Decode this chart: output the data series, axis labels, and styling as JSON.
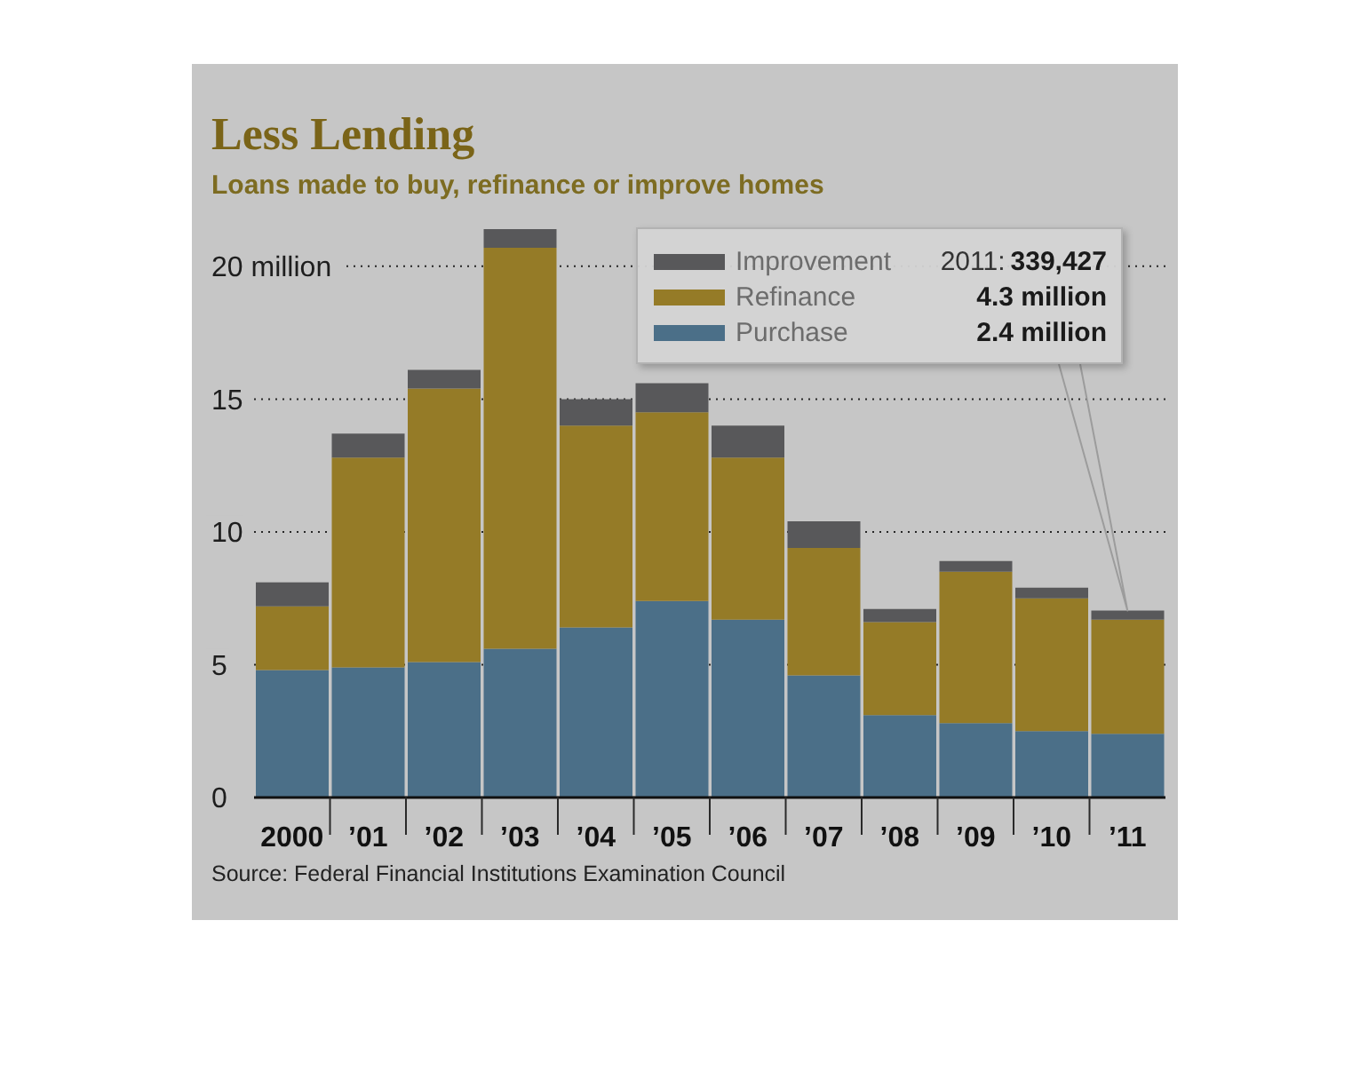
{
  "chart_data": {
    "type": "bar",
    "title": "Less Lending",
    "subtitle": "Loans made to buy, refinance or improve homes",
    "categories": [
      "2000",
      "’01",
      "’02",
      "’03",
      "’04",
      "’05",
      "’06",
      "’07",
      "’08",
      "’09",
      "’10",
      "’11"
    ],
    "stacked": true,
    "series": [
      {
        "name": "Purchase",
        "color": "#4b6f88",
        "values": [
          4.8,
          4.9,
          5.1,
          5.6,
          6.4,
          7.4,
          6.7,
          4.6,
          3.1,
          2.8,
          2.5,
          2.4
        ]
      },
      {
        "name": "Refinance",
        "color": "#957b27",
        "values": [
          2.4,
          7.9,
          10.3,
          15.1,
          7.6,
          7.1,
          6.1,
          4.8,
          3.5,
          5.7,
          5.0,
          4.3
        ]
      },
      {
        "name": "Improvement",
        "color": "#58585a",
        "values": [
          0.9,
          0.9,
          0.7,
          0.7,
          1.0,
          1.1,
          1.2,
          1.0,
          0.5,
          0.4,
          0.4,
          0.34
        ]
      }
    ],
    "ylim": [
      0,
      21.4
    ],
    "yticks": [
      0,
      5,
      10,
      15,
      {
        "value": 20,
        "label": "20 million"
      }
    ],
    "grid": "y",
    "legend": "top right",
    "annotations": [
      "2011:",
      "339,427",
      "4.3 million",
      "2.4 million",
      "Source: Federal Financial Institutions Examination Council"
    ]
  }
}
